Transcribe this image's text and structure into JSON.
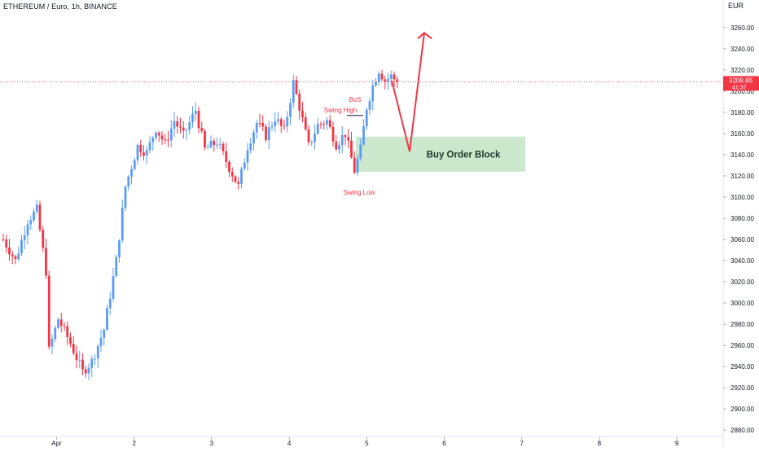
{
  "header": {
    "symbol": "ETHEREUM / Euro, 1h, BINANCE",
    "currency": "EUR"
  },
  "colors": {
    "up": "#5b9cf6",
    "down": "#f23645",
    "annotation": "#f23645",
    "order_block_fill": "#c8e6c9",
    "order_block_text": "#1e3a2a",
    "price_tag": "#f23645",
    "grid_line": "#e0e3eb",
    "axis_text": "#131722"
  },
  "chart_data": {
    "type": "candlestick",
    "title": "ETHEREUM / Euro, 1h, BINANCE",
    "ylabel": "",
    "xlabel": "",
    "ylim": [
      2874,
      3286
    ],
    "y_ticks": [
      2880,
      2900,
      2920,
      2940,
      2960,
      2980,
      3000,
      3020,
      3040,
      3060,
      3080,
      3100,
      3120,
      3140,
      3160,
      3180,
      3200,
      3220,
      3240,
      3260
    ],
    "y_tick_labels": [
      "2880.00",
      "2900.00",
      "2920.00",
      "2940.00",
      "2960.00",
      "2980.00",
      "3000.00",
      "3020.00",
      "3040.00",
      "3060.00",
      "3080.00",
      "3100.00",
      "3120.00",
      "3140.00",
      "3160.00",
      "3180.00",
      "3200.00",
      "3220.00",
      "3240.00",
      "3260.00"
    ],
    "x_range_days": [
      0.27,
      10.06
    ],
    "x_ticks": [
      {
        "label": "Apr",
        "day": 1
      },
      {
        "label": "2",
        "day": 2
      },
      {
        "label": "3",
        "day": 3
      },
      {
        "label": "4",
        "day": 4
      },
      {
        "label": "5",
        "day": 5
      },
      {
        "label": "6",
        "day": 6
      },
      {
        "label": "7",
        "day": 7
      },
      {
        "label": "8",
        "day": 8
      },
      {
        "label": "9",
        "day": 9
      }
    ],
    "last_price": 3208.86,
    "countdown": "41:37",
    "anchors": [
      {
        "i": 0,
        "p": 3060
      },
      {
        "i": 4,
        "p": 3040
      },
      {
        "i": 8,
        "p": 3078
      },
      {
        "i": 11,
        "p": 3088
      },
      {
        "i": 14,
        "p": 3030
      },
      {
        "i": 15,
        "p": 2955
      },
      {
        "i": 18,
        "p": 2985
      },
      {
        "i": 22,
        "p": 2962
      },
      {
        "i": 26,
        "p": 2935
      },
      {
        "i": 29,
        "p": 2945
      },
      {
        "i": 33,
        "p": 2975
      },
      {
        "i": 37,
        "p": 3040
      },
      {
        "i": 40,
        "p": 3110
      },
      {
        "i": 44,
        "p": 3148
      },
      {
        "i": 47,
        "p": 3142
      },
      {
        "i": 50,
        "p": 3165
      },
      {
        "i": 53,
        "p": 3150
      },
      {
        "i": 56,
        "p": 3172
      },
      {
        "i": 59,
        "p": 3158
      },
      {
        "i": 63,
        "p": 3182
      },
      {
        "i": 66,
        "p": 3145
      },
      {
        "i": 70,
        "p": 3152
      },
      {
        "i": 74,
        "p": 3128
      },
      {
        "i": 77,
        "p": 3110
      },
      {
        "i": 80,
        "p": 3148
      },
      {
        "i": 83,
        "p": 3170
      },
      {
        "i": 86,
        "p": 3158
      },
      {
        "i": 89,
        "p": 3175
      },
      {
        "i": 92,
        "p": 3162
      },
      {
        "i": 95,
        "p": 3208
      },
      {
        "i": 97,
        "p": 3185
      },
      {
        "i": 100,
        "p": 3148
      },
      {
        "i": 103,
        "p": 3168
      },
      {
        "i": 106,
        "p": 3172
      },
      {
        "i": 109,
        "p": 3150
      },
      {
        "i": 112,
        "p": 3160
      },
      {
        "i": 115,
        "p": 3125
      },
      {
        "i": 117,
        "p": 3145
      },
      {
        "i": 119,
        "p": 3185
      },
      {
        "i": 121,
        "p": 3205
      },
      {
        "i": 123,
        "p": 3220
      },
      {
        "i": 125,
        "p": 3210
      },
      {
        "i": 127,
        "p": 3214
      },
      {
        "i": 129,
        "p": 3208.86
      }
    ],
    "annotations": {
      "swing_high": {
        "label": "Swing High",
        "price": 3177
      },
      "bos": {
        "label": "BoS",
        "price": 3177
      },
      "swing_low": {
        "label": "Swing Low",
        "price": 3110
      },
      "order_block": {
        "label": "Buy Order Block",
        "top": 3157,
        "bottom": 3124
      },
      "projection": [
        {
          "p": 3210
        },
        {
          "p": 3143
        },
        {
          "p": 3255
        }
      ]
    }
  }
}
